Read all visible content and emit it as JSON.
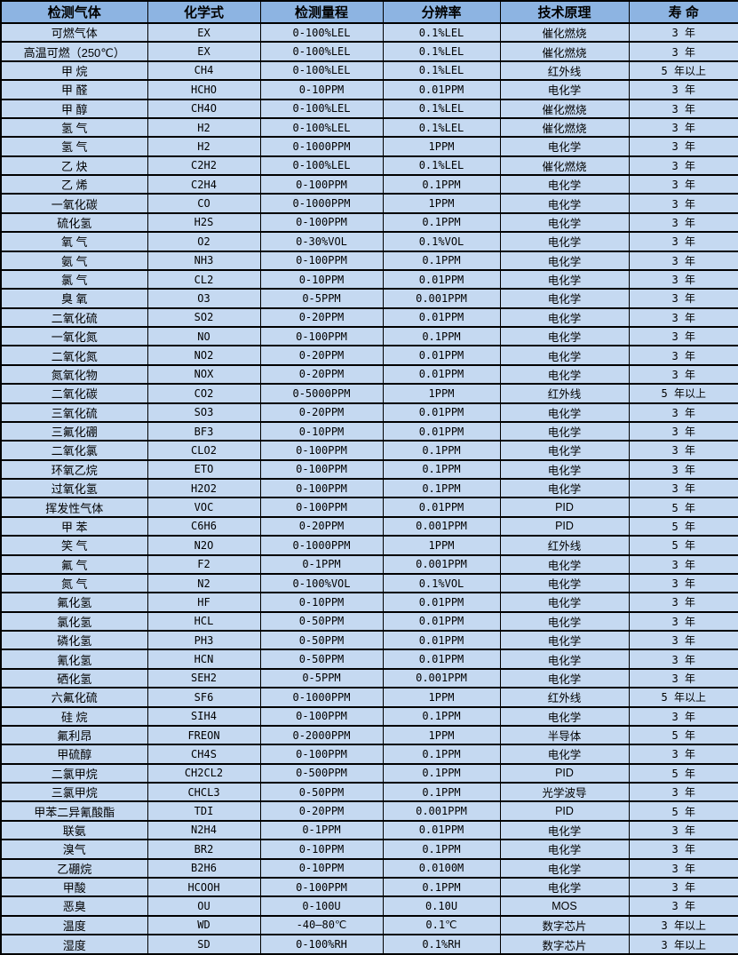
{
  "table": {
    "title": "gas-detector-specification-table",
    "colors": {
      "header_bg": "#8db4e2",
      "row_bg": "#c5d9f1",
      "border": "#000000",
      "text": "#000000"
    },
    "columns": [
      "检测气体",
      "化学式",
      "检测量程",
      "分辨率",
      "技术原理",
      "寿 命"
    ],
    "rows": [
      [
        "可燃气体",
        "EX",
        "0-100%LEL",
        "0.1%LEL",
        "催化燃烧",
        "3 年"
      ],
      [
        "高温可燃（250℃）",
        "EX",
        "0-100%LEL",
        "0.1%LEL",
        "催化燃烧",
        "3 年"
      ],
      [
        "甲 烷",
        "CH4",
        "0-100%LEL",
        "0.1%LEL",
        "红外线",
        "5 年以上"
      ],
      [
        "甲 醛",
        "HCHO",
        "0-10PPM",
        "0.01PPM",
        "电化学",
        "3 年"
      ],
      [
        "甲 醇",
        "CH4O",
        "0-100%LEL",
        "0.1%LEL",
        "催化燃烧",
        "3 年"
      ],
      [
        "氢 气",
        "H2",
        "0-100%LEL",
        "0.1%LEL",
        "催化燃烧",
        "3 年"
      ],
      [
        "氢 气",
        "H2",
        "0-1000PPM",
        "1PPM",
        "电化学",
        "3 年"
      ],
      [
        "乙 炔",
        "C2H2",
        "0-100%LEL",
        "0.1%LEL",
        "催化燃烧",
        "3 年"
      ],
      [
        "乙 烯",
        "C2H4",
        "0-100PPM",
        "0.1PPM",
        "电化学",
        "3 年"
      ],
      [
        "一氧化碳",
        "CO",
        "0-1000PPM",
        "1PPM",
        "电化学",
        "3 年"
      ],
      [
        "硫化氢",
        "H2S",
        "0-100PPM",
        "0.1PPM",
        "电化学",
        "3 年"
      ],
      [
        "氧 气",
        "O2",
        "0-30%VOL",
        "0.1%VOL",
        "电化学",
        "3 年"
      ],
      [
        "氨 气",
        "NH3",
        "0-100PPM",
        "0.1PPM",
        "电化学",
        "3 年"
      ],
      [
        "氯 气",
        "CL2",
        "0-10PPM",
        "0.01PPM",
        "电化学",
        "3 年"
      ],
      [
        "臭 氧",
        "O3",
        "0-5PPM",
        "0.001PPM",
        "电化学",
        "3 年"
      ],
      [
        "二氧化硫",
        "SO2",
        "0-20PPM",
        "0.01PPM",
        "电化学",
        "3 年"
      ],
      [
        "一氧化氮",
        "NO",
        "0-100PPM",
        "0.1PPM",
        "电化学",
        "3 年"
      ],
      [
        "二氧化氮",
        "NO2",
        "0-20PPM",
        "0.01PPM",
        "电化学",
        "3 年"
      ],
      [
        "氮氧化物",
        "NOX",
        "0-20PPM",
        "0.01PPM",
        "电化学",
        "3 年"
      ],
      [
        "二氧化碳",
        "CO2",
        "0-5000PPM",
        "1PPM",
        "红外线",
        "5 年以上"
      ],
      [
        "三氧化硫",
        "SO3",
        "0-20PPM",
        "0.01PPM",
        "电化学",
        "3 年"
      ],
      [
        "三氟化硼",
        "BF3",
        "0-10PPM",
        "0.01PPM",
        "电化学",
        "3 年"
      ],
      [
        "二氧化氯",
        "CLO2",
        "0-100PPM",
        "0.1PPM",
        "电化学",
        "3 年"
      ],
      [
        "环氧乙烷",
        "ETO",
        "0-100PPM",
        "0.1PPM",
        "电化学",
        "3 年"
      ],
      [
        "过氧化氢",
        "H2O2",
        "0-100PPM",
        "0.1PPM",
        "电化学",
        "3 年"
      ],
      [
        "挥发性气体",
        "VOC",
        "0-100PPM",
        "0.01PPM",
        "PID",
        "5 年"
      ],
      [
        "甲 苯",
        "C6H6",
        "0-20PPM",
        "0.001PPM",
        "PID",
        "5 年"
      ],
      [
        "笑 气",
        "N2O",
        "0-1000PPM",
        "1PPM",
        "红外线",
        "5 年"
      ],
      [
        "氟 气",
        "F2",
        "0-1PPM",
        "0.001PPM",
        "电化学",
        "3 年"
      ],
      [
        "氮 气",
        "N2",
        "0-100%VOL",
        "0.1%VOL",
        "电化学",
        "3 年"
      ],
      [
        "氟化氢",
        "HF",
        "0-10PPM",
        "0.01PPM",
        "电化学",
        "3 年"
      ],
      [
        "氯化氢",
        "HCL",
        "0-50PPM",
        "0.01PPM",
        "电化学",
        "3 年"
      ],
      [
        "磷化氢",
        "PH3",
        "0-50PPM",
        "0.01PPM",
        "电化学",
        "3 年"
      ],
      [
        "氰化氢",
        "HCN",
        "0-50PPM",
        "0.01PPM",
        "电化学",
        "3 年"
      ],
      [
        "硒化氢",
        "SEH2",
        "0-5PPM",
        "0.001PPM",
        "电化学",
        "3 年"
      ],
      [
        "六氟化硫",
        "SF6",
        "0-1000PPM",
        "1PPM",
        "红外线",
        "5 年以上"
      ],
      [
        "硅 烷",
        "SIH4",
        "0-100PPM",
        "0.1PPM",
        "电化学",
        "3 年"
      ],
      [
        "氟利昂",
        "FREON",
        "0-2000PPM",
        "1PPM",
        "半导体",
        "5 年"
      ],
      [
        "甲硫醇",
        "CH4S",
        "0-100PPM",
        "0.1PPM",
        "电化学",
        "3 年"
      ],
      [
        "二氯甲烷",
        "CH2CL2",
        "0-500PPM",
        "0.1PPM",
        "PID",
        "5 年"
      ],
      [
        "三氯甲烷",
        "CHCL3",
        "0-50PPM",
        "0.1PPM",
        "光学波导",
        "3 年"
      ],
      [
        "甲苯二异氰酸酯",
        "TDI",
        "0-20PPM",
        "0.001PPM",
        "PID",
        "5 年"
      ],
      [
        "联氨",
        "N2H4",
        "0-1PPM",
        "0.01PPM",
        "电化学",
        "3 年"
      ],
      [
        "溴气",
        "BR2",
        "0-10PPM",
        "0.1PPM",
        "电化学",
        "3 年"
      ],
      [
        "乙硼烷",
        "B2H6",
        "0-10PPM",
        "0.0100M",
        "电化学",
        "3 年"
      ],
      [
        "甲酸",
        "HCOOH",
        "0-100PPM",
        "0.1PPM",
        "电化学",
        "3 年"
      ],
      [
        "恶臭",
        "OU",
        "0-100U",
        "0.10U",
        "MOS",
        "3 年"
      ],
      [
        "温度",
        "WD",
        "-40—80℃",
        "0.1℃",
        "数字芯片",
        "3 年以上"
      ],
      [
        "湿度",
        "SD",
        "0-100%RH",
        "0.1%RH",
        "数字芯片",
        "3 年以上"
      ]
    ],
    "cell_names": [
      "gas-name-cell",
      "formula-cell",
      "range-cell",
      "resolution-cell",
      "principle-cell",
      "lifespan-cell"
    ]
  }
}
